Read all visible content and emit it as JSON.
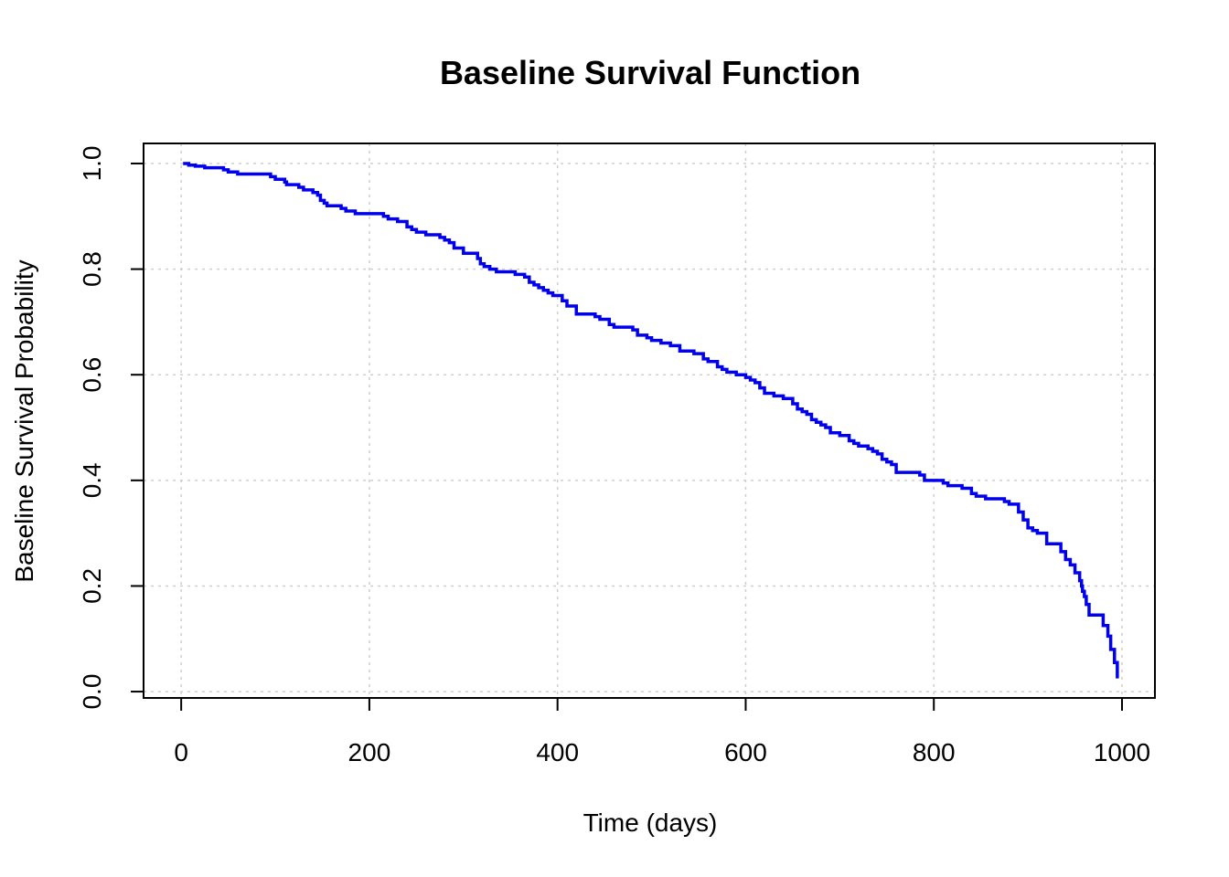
{
  "chart_data": {
    "type": "line",
    "step": true,
    "title": "Baseline Survival Function",
    "xlabel": "Time (days)",
    "ylabel": "Baseline Survival Probability",
    "xlim": [
      -40,
      1035
    ],
    "ylim": [
      -0.012,
      1.038
    ],
    "xticks": [
      0,
      200,
      400,
      600,
      800,
      1000
    ],
    "yticks": [
      0.0,
      0.2,
      0.4,
      0.6,
      0.8,
      1.0
    ],
    "xtick_labels": [
      "0",
      "200",
      "400",
      "600",
      "800",
      "1000"
    ],
    "ytick_labels": [
      "0.0",
      "0.2",
      "0.4",
      "0.6",
      "0.8",
      "1.0"
    ],
    "grid": true,
    "colors": {
      "line": "#0000ee",
      "grid": "#cfcfcf"
    },
    "series": [
      {
        "x": [
          2,
          8,
          15,
          25,
          45,
          50,
          60,
          95,
          100,
          110,
          112,
          125,
          130,
          140,
          145,
          148,
          152,
          155,
          170,
          175,
          185,
          215,
          220,
          230,
          240,
          245,
          250,
          260,
          275,
          280,
          285,
          290,
          300,
          315,
          318,
          322,
          328,
          335,
          355,
          365,
          370,
          375,
          380,
          385,
          390,
          395,
          405,
          410,
          420,
          440,
          445,
          455,
          460,
          480,
          485,
          495,
          500,
          510,
          520,
          530,
          545,
          555,
          560,
          570,
          575,
          580,
          590,
          600,
          605,
          610,
          615,
          620,
          630,
          640,
          650,
          655,
          660,
          665,
          670,
          675,
          680,
          685,
          690,
          700,
          710,
          715,
          720,
          730,
          735,
          740,
          745,
          750,
          755,
          760,
          785,
          790,
          810,
          815,
          830,
          840,
          845,
          855,
          875,
          880,
          890,
          895,
          900,
          905,
          910,
          920,
          935,
          940,
          945,
          950,
          955,
          957,
          958,
          960,
          962,
          965,
          980,
          985,
          988,
          992,
          995
        ],
        "y": [
          1.0,
          0.997,
          0.995,
          0.992,
          0.988,
          0.984,
          0.98,
          0.975,
          0.97,
          0.965,
          0.96,
          0.955,
          0.95,
          0.945,
          0.94,
          0.93,
          0.925,
          0.92,
          0.915,
          0.91,
          0.905,
          0.9,
          0.895,
          0.89,
          0.88,
          0.875,
          0.87,
          0.865,
          0.86,
          0.855,
          0.85,
          0.84,
          0.83,
          0.82,
          0.81,
          0.805,
          0.8,
          0.795,
          0.79,
          0.785,
          0.775,
          0.77,
          0.765,
          0.76,
          0.755,
          0.75,
          0.74,
          0.73,
          0.715,
          0.71,
          0.705,
          0.695,
          0.69,
          0.685,
          0.675,
          0.67,
          0.665,
          0.66,
          0.655,
          0.645,
          0.64,
          0.63,
          0.625,
          0.615,
          0.61,
          0.605,
          0.6,
          0.595,
          0.59,
          0.585,
          0.575,
          0.565,
          0.56,
          0.555,
          0.545,
          0.535,
          0.53,
          0.525,
          0.515,
          0.51,
          0.505,
          0.5,
          0.49,
          0.485,
          0.475,
          0.47,
          0.465,
          0.46,
          0.455,
          0.45,
          0.44,
          0.435,
          0.43,
          0.415,
          0.41,
          0.4,
          0.395,
          0.39,
          0.385,
          0.375,
          0.37,
          0.365,
          0.36,
          0.355,
          0.34,
          0.325,
          0.31,
          0.305,
          0.3,
          0.28,
          0.265,
          0.25,
          0.24,
          0.225,
          0.21,
          0.2,
          0.19,
          0.18,
          0.165,
          0.145,
          0.125,
          0.105,
          0.08,
          0.055,
          0.025
        ]
      }
    ]
  }
}
